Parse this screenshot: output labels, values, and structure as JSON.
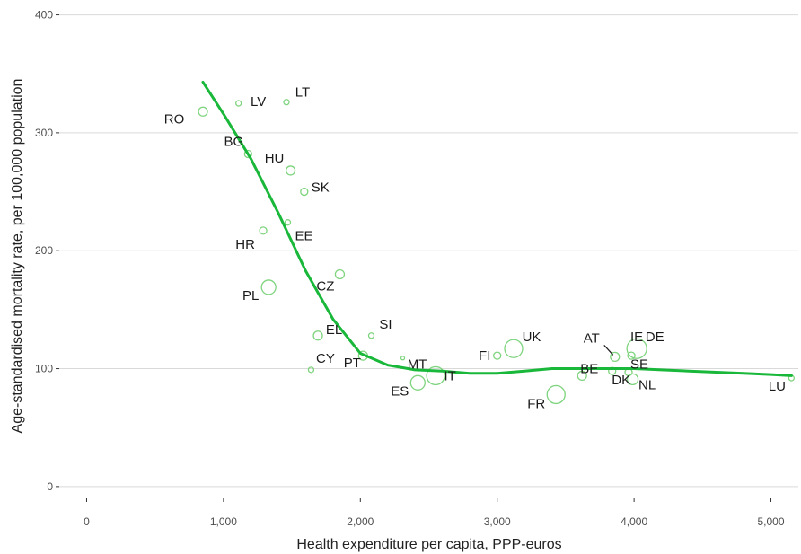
{
  "chart_data": {
    "type": "scatter",
    "xlabel": "Health expenditure per capita, PPP-euros",
    "ylabel": "Age-standardised mortality rate, per 100,000 population",
    "xlim": [
      -200,
      5200
    ],
    "ylim": [
      -10,
      405
    ],
    "x_ticks": [
      0,
      1000,
      2000,
      3000,
      4000,
      5000
    ],
    "x_tick_labels": [
      "0",
      "1,000",
      "2,000",
      "3,000",
      "4,000",
      "5,000"
    ],
    "y_ticks": [
      0,
      100,
      200,
      300,
      400
    ],
    "y_tick_labels": [
      "0",
      "100",
      "200",
      "300",
      "400"
    ],
    "grid": "horizontal",
    "colors": {
      "point": "#7fd47f",
      "trend": "#1ab83a",
      "grid": "#d9d9d9"
    },
    "points": [
      {
        "label": "RO",
        "x": 850,
        "y": 318,
        "size": 5
      },
      {
        "label": "LV",
        "x": 1110,
        "y": 325,
        "size": 3
      },
      {
        "label": "LT",
        "x": 1460,
        "y": 326,
        "size": 3
      },
      {
        "label": "BG",
        "x": 1180,
        "y": 282,
        "size": 4
      },
      {
        "label": "HU",
        "x": 1490,
        "y": 268,
        "size": 5
      },
      {
        "label": "SK",
        "x": 1590,
        "y": 250,
        "size": 4
      },
      {
        "label": "EE",
        "x": 1470,
        "y": 224,
        "size": 3
      },
      {
        "label": "HR",
        "x": 1290,
        "y": 217,
        "size": 4
      },
      {
        "label": "PL",
        "x": 1330,
        "y": 169,
        "size": 8
      },
      {
        "label": "CZ",
        "x": 1850,
        "y": 180,
        "size": 5
      },
      {
        "label": "EL",
        "x": 1690,
        "y": 128,
        "size": 5
      },
      {
        "label": "SI",
        "x": 2080,
        "y": 128,
        "size": 3
      },
      {
        "label": "CY",
        "x": 1640,
        "y": 99,
        "size": 3
      },
      {
        "label": "PT",
        "x": 2020,
        "y": 111,
        "size": 5
      },
      {
        "label": "MT",
        "x": 2310,
        "y": 109,
        "size": 2
      },
      {
        "label": "ES",
        "x": 2420,
        "y": 88,
        "size": 8
      },
      {
        "label": "IT",
        "x": 2550,
        "y": 94,
        "size": 10
      },
      {
        "label": "FI",
        "x": 3000,
        "y": 111,
        "size": 4
      },
      {
        "label": "UK",
        "x": 3120,
        "y": 117,
        "size": 10
      },
      {
        "label": "FR",
        "x": 3430,
        "y": 78,
        "size": 10
      },
      {
        "label": "BE",
        "x": 3620,
        "y": 94,
        "size": 5
      },
      {
        "label": "DK",
        "x": 3840,
        "y": 98,
        "size": 4
      },
      {
        "label": "AT",
        "x": 3860,
        "y": 110,
        "size": 5
      },
      {
        "label": "IE",
        "x": 3980,
        "y": 111,
        "size": 4
      },
      {
        "label": "DE",
        "x": 4020,
        "y": 117,
        "size": 11
      },
      {
        "label": "SE",
        "x": 3960,
        "y": 97,
        "size": 4
      },
      {
        "label": "NL",
        "x": 3990,
        "y": 91,
        "size": 6
      },
      {
        "label": "LU",
        "x": 5150,
        "y": 92,
        "size": 3
      }
    ],
    "trend": {
      "x": [
        850,
        1000,
        1200,
        1400,
        1600,
        1800,
        2000,
        2200,
        2400,
        2600,
        2800,
        3000,
        3200,
        3400,
        3600,
        3800,
        4000,
        4200,
        4400,
        4600,
        4800,
        5000,
        5150
      ],
      "y": [
        343,
        316,
        278,
        232,
        183,
        142,
        113,
        103,
        99,
        98,
        96,
        96,
        98,
        100,
        100,
        100,
        100,
        99,
        98,
        97,
        96,
        95,
        94
      ]
    }
  }
}
